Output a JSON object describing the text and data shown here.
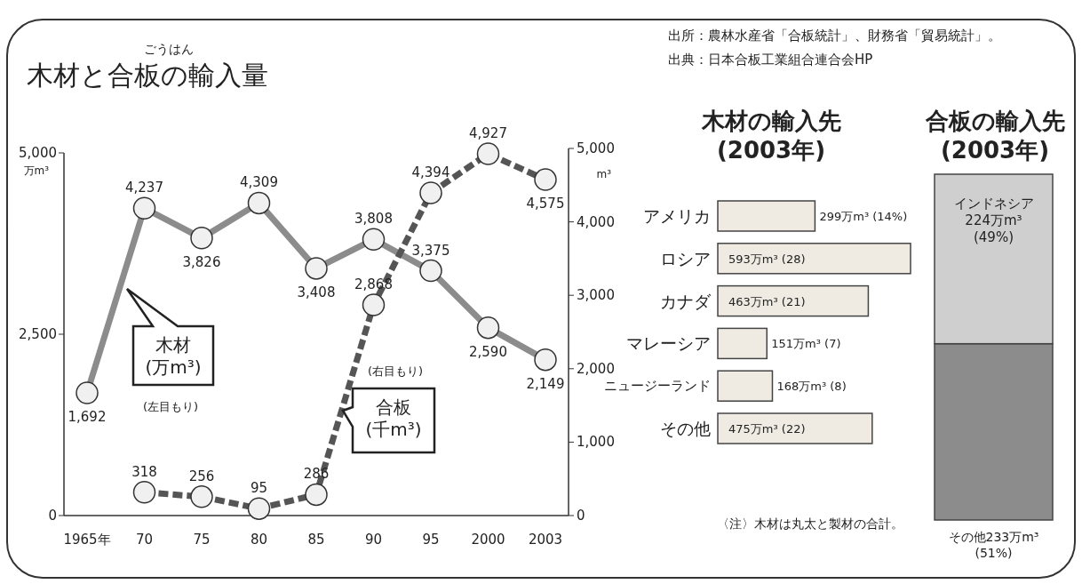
{
  "chart_data": [
    {
      "type": "line",
      "title": "木材と合板の輸入量",
      "annotations": [
        "ごうはん",
        "出所：農林水産省「合板統計」、財務省「貿易統計」。",
        "出典：日本合板工業組合連合会HP",
        "(左目もり)",
        "(右目もり)"
      ],
      "categories": [
        "1965年",
        "70",
        "75",
        "80",
        "85",
        "90",
        "95",
        "2000",
        "2003"
      ],
      "ylabel": "万m³",
      "y2label": "m³",
      "ylim": [
        0,
        5000
      ],
      "yticks": [
        0,
        {
          "value": 2500,
          "label": "2,500"
        },
        {
          "value": 5000,
          "label": "5,000"
        }
      ],
      "y2lim": [
        0,
        5000
      ],
      "y2ticks": [
        0,
        {
          "value": 1000,
          "label": "1,000"
        },
        {
          "value": 2000,
          "label": "2,000"
        },
        {
          "value": 3000,
          "label": "3,000"
        },
        {
          "value": 4000,
          "label": "4,000"
        },
        {
          "value": 5000,
          "label": "5,000"
        }
      ],
      "marker": "circle",
      "series": [
        {
          "name": "木材\n(万m³)",
          "color": "#8c8c8c",
          "line_style": "solid",
          "values": [
            1692,
            4237,
            3826,
            4309,
            3408,
            3808,
            3375,
            2590,
            2149
          ],
          "value_labels": [
            "1,692",
            "4,237",
            "3,826",
            "4,309",
            "3,408",
            "3,808",
            "3,375",
            "2,590",
            "2,149"
          ]
        },
        {
          "name": "合板\n(千m³)",
          "color": "#555555",
          "line_style": "dashed",
          "axis": "y2",
          "values": [
            null,
            318,
            256,
            95,
            286,
            2868,
            4394,
            4927,
            4575
          ],
          "value_labels": [
            null,
            "318",
            "256",
            "95",
            "286",
            "2,868",
            "4,394",
            "4,927",
            "4,575"
          ]
        }
      ]
    },
    {
      "type": "bar",
      "orientation": "horizontal",
      "title": "木材の輸入先\n(2003年)",
      "categories": [
        "アメリカ",
        "ロシア",
        "カナダ",
        "マレーシア",
        "ニュージーランド",
        "その他"
      ],
      "values": [
        299,
        593,
        463,
        151,
        168,
        475
      ],
      "color": "#efebe3",
      "value_labels": [
        "299万m³ (14%)",
        "593万m³ (28)",
        "463万m³ (21)",
        "151万m³ (7)",
        "168万m³ (8)",
        "475万m³ (22)"
      ],
      "annotations": [
        "〈注〉木材は丸太と製材の合計。"
      ]
    },
    {
      "type": "bar",
      "stacked": true,
      "title": "合板の輸入先\n(2003年)",
      "categories": [
        null
      ],
      "series": [
        {
          "color": "#8c8c8c",
          "values": [
            233
          ],
          "value_labels": [
            "その他233万m³\n(51%)"
          ]
        },
        {
          "color": "#cfcfcf",
          "values": [
            224
          ],
          "value_labels": [
            "インドネシア\n224万m³\n(49%)"
          ]
        }
      ]
    }
  ]
}
